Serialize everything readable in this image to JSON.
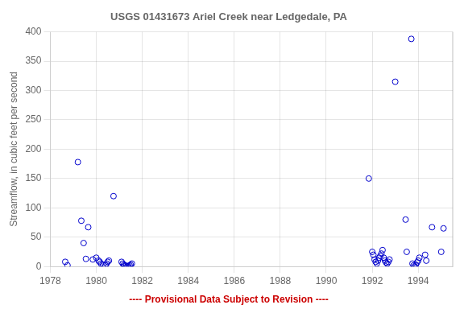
{
  "chart_data": {
    "type": "scatter",
    "title": "USGS 01431673 Ariel Creek near Ledgedale, PA",
    "ylabel": "Streamflow, in cubic feet per second",
    "annotations": [
      {
        "text": "---- Provisional Data Subject to Revision ----",
        "color": "#cc0000"
      }
    ],
    "xlim": [
      1978,
      1995.5
    ],
    "ylim": [
      0,
      400
    ],
    "xticks": [
      1978,
      1980,
      1982,
      1984,
      1986,
      1988,
      1990,
      1992,
      1994
    ],
    "yticks": [
      0,
      50,
      100,
      150,
      200,
      250,
      300,
      350,
      400
    ],
    "grid": true,
    "color": "#0000cc",
    "marker": "open circle",
    "x": [
      1978.65,
      1978.75,
      1979.2,
      1979.35,
      1979.45,
      1979.55,
      1979.65,
      1979.85,
      1980.0,
      1980.1,
      1980.15,
      1980.2,
      1980.3,
      1980.4,
      1980.45,
      1980.5,
      1980.55,
      1980.75,
      1981.1,
      1981.15,
      1981.2,
      1981.25,
      1981.3,
      1981.35,
      1981.4,
      1981.45,
      1981.5,
      1981.55,
      1991.85,
      1992.0,
      1992.05,
      1992.1,
      1992.15,
      1992.2,
      1992.25,
      1992.3,
      1992.35,
      1992.4,
      1992.45,
      1992.5,
      1992.55,
      1992.6,
      1992.65,
      1992.7,
      1992.75,
      1993.0,
      1993.45,
      1993.5,
      1993.7,
      1993.75,
      1993.8,
      1993.85,
      1993.9,
      1993.95,
      1994.0,
      1994.05,
      1994.3,
      1994.35,
      1994.6,
      1995.0,
      1995.1
    ],
    "values": [
      8,
      2,
      178,
      78,
      40,
      13,
      67,
      12,
      15,
      10,
      8,
      5,
      3,
      2,
      5,
      8,
      10,
      120,
      8,
      5,
      3,
      2,
      1,
      0,
      1,
      2,
      3,
      5,
      150,
      25,
      20,
      12,
      8,
      5,
      10,
      15,
      18,
      22,
      28,
      15,
      10,
      7,
      5,
      8,
      12,
      315,
      80,
      25,
      388,
      5,
      2,
      0,
      3,
      7,
      10,
      15,
      20,
      10,
      67,
      25,
      65
    ]
  }
}
